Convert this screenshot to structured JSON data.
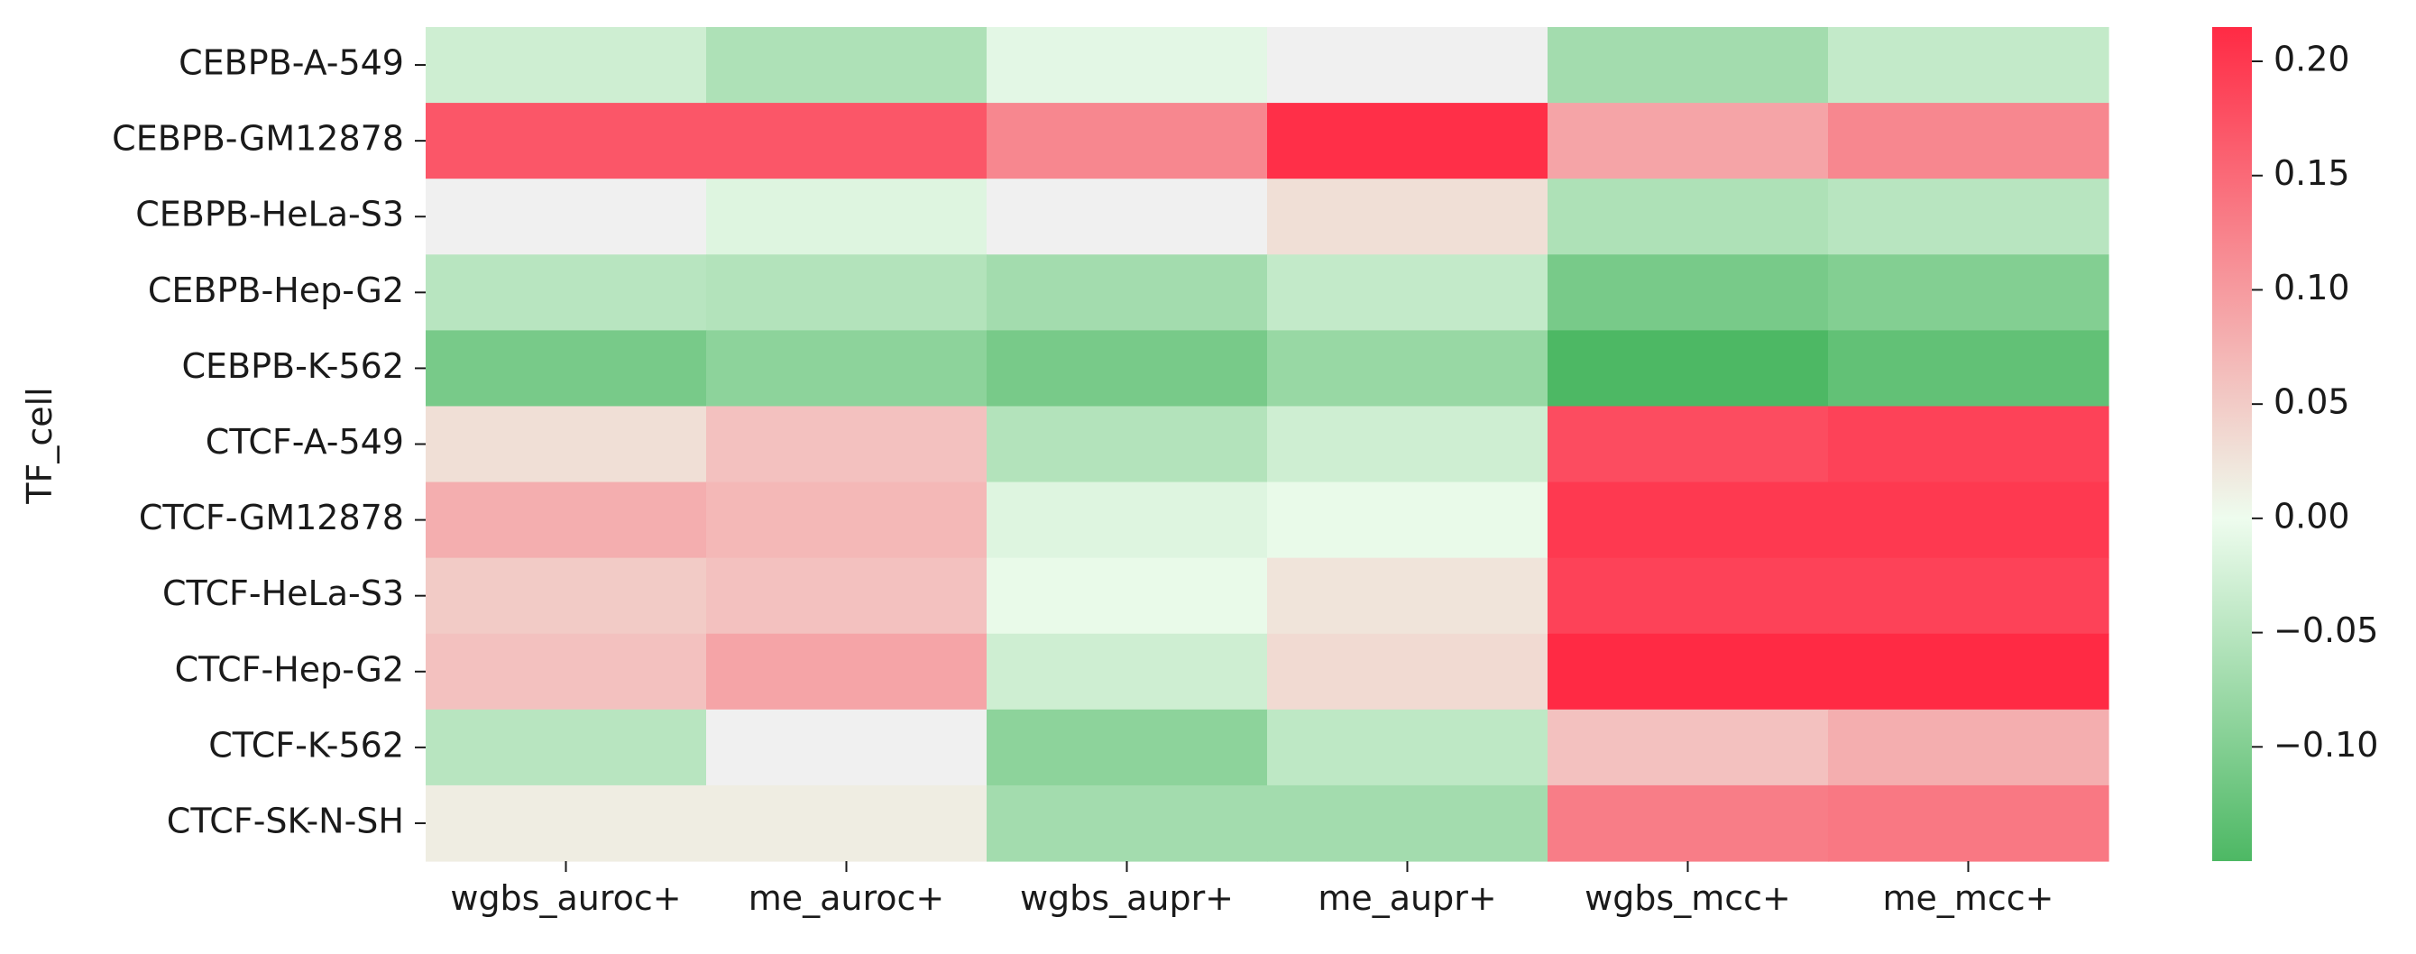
{
  "chart_data": {
    "type": "heatmap",
    "ylabel": "TF_cell",
    "xlabel": "",
    "x_categories": [
      "wgbs_auroc+",
      "me_auroc+",
      "wgbs_aupr+",
      "me_aupr+",
      "wgbs_mcc+",
      "me_mcc+"
    ],
    "y_categories": [
      "CEBPB-A-549",
      "CEBPB-GM12878",
      "CEBPB-HeLa-S3",
      "CEBPB-Hep-G2",
      "CEBPB-K-562",
      "CTCF-A-549",
      "CTCF-GM12878",
      "CTCF-HeLa-S3",
      "CTCF-Hep-G2",
      "CTCF-K-562",
      "CTCF-SK-N-SH"
    ],
    "values": [
      [
        -0.03,
        -0.06,
        -0.01,
        0.0,
        -0.07,
        -0.04
      ],
      [
        0.17,
        0.17,
        0.12,
        0.21,
        0.09,
        0.12
      ],
      [
        0.0,
        -0.015,
        0.0,
        0.03,
        -0.06,
        -0.05
      ],
      [
        -0.05,
        -0.055,
        -0.07,
        -0.04,
        -0.11,
        -0.1
      ],
      [
        -0.11,
        -0.09,
        -0.11,
        -0.08,
        -0.15,
        -0.13
      ],
      [
        0.03,
        0.06,
        -0.055,
        -0.03,
        0.18,
        0.19
      ],
      [
        0.08,
        0.07,
        -0.015,
        -0.005,
        0.2,
        0.2
      ],
      [
        0.05,
        0.06,
        -0.005,
        0.025,
        0.19,
        0.19
      ],
      [
        0.06,
        0.09,
        -0.03,
        0.035,
        0.215,
        0.215
      ],
      [
        -0.05,
        0.0,
        -0.09,
        -0.045,
        0.06,
        0.08
      ],
      [
        0.015,
        0.015,
        -0.07,
        -0.07,
        0.13,
        0.135
      ]
    ],
    "colorbar": {
      "min": -0.15,
      "max": 0.215,
      "ticks": [
        0.2,
        0.15,
        0.1,
        0.05,
        0.0,
        -0.05,
        -0.1
      ],
      "tick_labels": [
        "0.20",
        "0.15",
        "0.10",
        "0.05",
        "0.00",
        "−0.05",
        "−0.10"
      ]
    },
    "colors": {
      "negative_end": "#4db864",
      "zero": "#eefcee",
      "positive_end": "#ff2a44",
      "mask_neutral": "#f0f0f0"
    }
  }
}
